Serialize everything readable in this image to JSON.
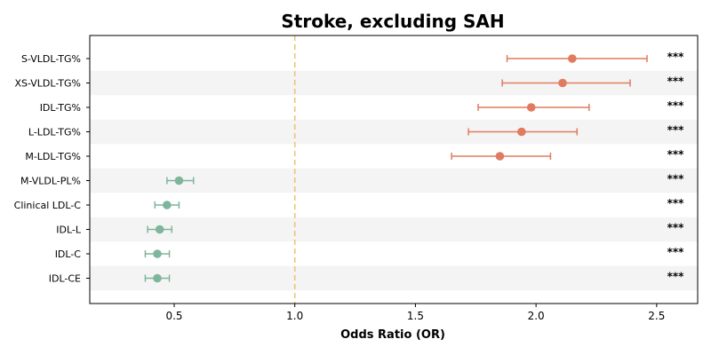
{
  "chart_data": {
    "type": "forest",
    "title": "Stroke, excluding SAH",
    "xlabel": "Odds Ratio (OR)",
    "xlim": [
      0.15,
      2.67
    ],
    "xticks": [
      0.5,
      1.0,
      1.5,
      2.0,
      2.5
    ],
    "xtick_labels": [
      "0.5",
      "1.0",
      "1.5",
      "2.0",
      "2.5"
    ],
    "reference_line": 1.0,
    "reference_color": "#f0c27b",
    "positive_color": "#e07b5f",
    "negative_color": "#7fb59a",
    "band_color": "#f4f4f4",
    "rows": [
      {
        "label": "S-VLDL-TG%",
        "or": 2.15,
        "lower": 1.88,
        "upper": 2.46,
        "sig": "***",
        "color": "#e07b5f"
      },
      {
        "label": "XS-VLDL-TG%",
        "or": 2.11,
        "lower": 1.86,
        "upper": 2.39,
        "sig": "***",
        "color": "#e07b5f"
      },
      {
        "label": "IDL-TG%",
        "or": 1.98,
        "lower": 1.76,
        "upper": 2.22,
        "sig": "***",
        "color": "#e07b5f"
      },
      {
        "label": "L-LDL-TG%",
        "or": 1.94,
        "lower": 1.72,
        "upper": 2.17,
        "sig": "***",
        "color": "#e07b5f"
      },
      {
        "label": "M-LDL-TG%",
        "or": 1.85,
        "lower": 1.65,
        "upper": 2.06,
        "sig": "***",
        "color": "#e07b5f"
      },
      {
        "label": "M-VLDL-PL%",
        "or": 0.52,
        "lower": 0.47,
        "upper": 0.58,
        "sig": "***",
        "color": "#7fb59a"
      },
      {
        "label": "Clinical LDL-C",
        "or": 0.47,
        "lower": 0.42,
        "upper": 0.52,
        "sig": "***",
        "color": "#7fb59a"
      },
      {
        "label": "IDL-L",
        "or": 0.44,
        "lower": 0.39,
        "upper": 0.49,
        "sig": "***",
        "color": "#7fb59a"
      },
      {
        "label": "IDL-C",
        "or": 0.43,
        "lower": 0.38,
        "upper": 0.48,
        "sig": "***",
        "color": "#7fb59a"
      },
      {
        "label": "IDL-CE",
        "or": 0.43,
        "lower": 0.38,
        "upper": 0.48,
        "sig": "***",
        "color": "#7fb59a"
      }
    ]
  }
}
